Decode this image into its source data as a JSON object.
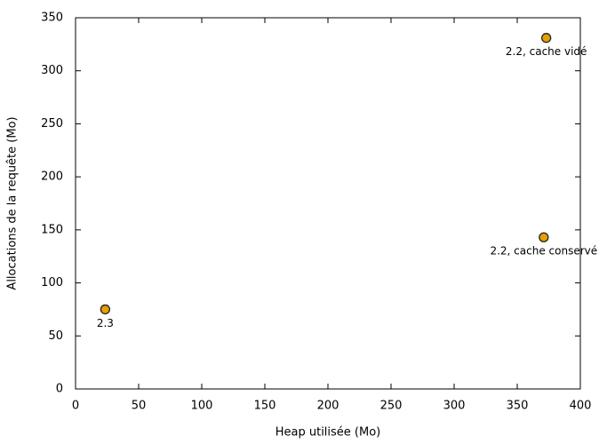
{
  "chart_data": {
    "type": "scatter",
    "xlabel": "Heap utilisée (Mo)",
    "ylabel": "Allocations de la requête (Mo)",
    "x": [
      23.5,
      373,
      371
    ],
    "values": [
      75,
      331,
      143
    ],
    "labels": [
      "2.3",
      "2.2, cache vidé",
      "2.2, cache conservé"
    ],
    "color": "#e69f00",
    "xlim": [
      0,
      400
    ],
    "xticks": [
      0,
      50,
      100,
      150,
      200,
      250,
      300,
      350,
      400
    ],
    "ylim": [
      0,
      350
    ],
    "yticks": [
      0,
      50,
      100,
      150,
      200,
      250,
      300,
      350
    ],
    "grid": false
  }
}
